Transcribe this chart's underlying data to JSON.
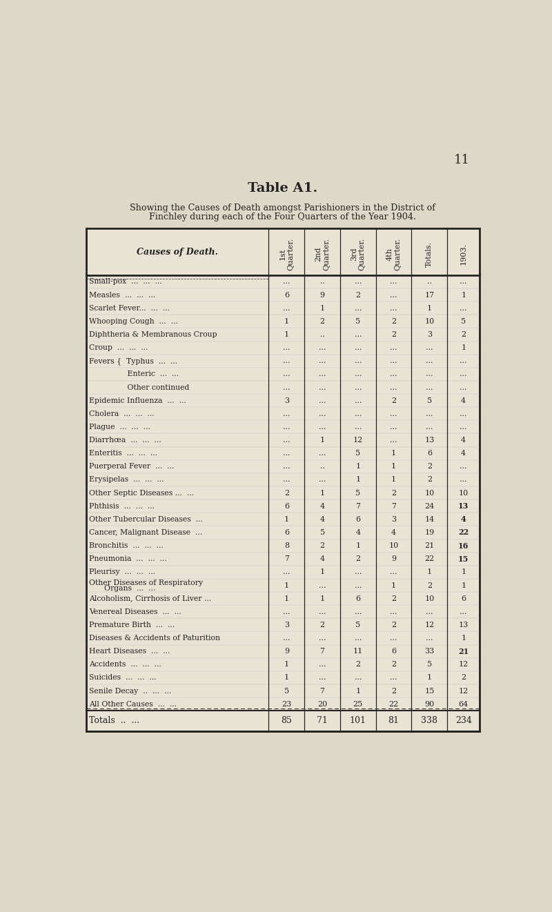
{
  "page_number": "11",
  "title": "Table A1.",
  "subtitle_line1": "Showing the Causes of Death amongst Parishioners in the District of",
  "subtitle_line2": "Finchley during each of the Four Quarters of the Year 1904.",
  "col_headers": [
    "Causes of Death.",
    "1st\nQuarter.",
    "2nd\nQuarter.",
    "3rd\nQuarter.",
    "4th\nQuarter.",
    "Totals.",
    "1903."
  ],
  "rows": [
    [
      "Small-pox  ...  ...  ...",
      "...",
      "..",
      "...",
      "...",
      "..",
      "..."
    ],
    [
      "Measles  ...  ...  ...",
      "6",
      "9",
      "2",
      "...",
      "17",
      "1"
    ],
    [
      "Scarlet Fever...  ...  ...",
      "...",
      "1",
      "...",
      "...",
      "1",
      "..."
    ],
    [
      "Whooping Cough  ...  ...",
      "1",
      "2",
      "5",
      "2",
      "10",
      "5"
    ],
    [
      "Diphtheria & Membranous Croup",
      "1",
      "..",
      "...",
      "2",
      "3",
      "2"
    ],
    [
      "Croup  ...  ...  ...",
      "...",
      "...",
      "...",
      "...",
      "...",
      "1"
    ],
    [
      "Fevers {  Typhus  ...  ...",
      "...",
      "...",
      "...",
      "...",
      "...",
      "..."
    ],
    [
      "           Enteric  ...  ...",
      "...",
      "...",
      "...",
      "...",
      "...",
      "..."
    ],
    [
      "           Other continued",
      "...",
      "...",
      "...",
      "...",
      "...",
      "..."
    ],
    [
      "Epidemic Influenza  ...  ...",
      "3",
      "...",
      "...",
      "2",
      "5",
      "4"
    ],
    [
      "Cholera  ...  ...  ...",
      "...",
      "...",
      "...",
      "...",
      "...",
      "..."
    ],
    [
      "Plague  ...  ...  ...",
      "...",
      "...",
      "...",
      "...",
      "...",
      "..."
    ],
    [
      "Diarrhœa  ...  ...  ...",
      "...",
      "1",
      "12",
      "...",
      "13",
      "4"
    ],
    [
      "Enteritis  ...  ...  ...",
      "...",
      "...",
      "5",
      "1",
      "6",
      "4"
    ],
    [
      "Puerperal Fever  ...  ...",
      "...",
      "..",
      "1",
      "1",
      "2",
      "..."
    ],
    [
      "Erysipelas  ...  ...  ...",
      "...",
      "...",
      "1",
      "1",
      "2",
      "..."
    ],
    [
      "Other Septic Diseases ...  ...",
      "2",
      "1",
      "5",
      "2",
      "10",
      "10"
    ],
    [
      "Phthisis  ...  ...  ...",
      "6",
      "4",
      "7",
      "7",
      "24",
      "13"
    ],
    [
      "Other Tubercular Diseases  ...",
      "1",
      "4",
      "6",
      "3",
      "14",
      "4"
    ],
    [
      "Cancer, Malignant Disease  ...",
      "6",
      "5",
      "4",
      "4",
      "19",
      "22"
    ],
    [
      "Bronchitis  ...  ...  ...",
      "8",
      "2",
      "1",
      "10",
      "21",
      "16"
    ],
    [
      "Pneumonia  ...  ...  ...",
      "7",
      "4",
      "2",
      "9",
      "22",
      "15"
    ],
    [
      "Pleurisy  ...  ...  ...",
      "...",
      "1",
      "...",
      "...",
      "1",
      "1"
    ],
    [
      "Other Diseases of Respiratory",
      "1",
      "...",
      "...",
      "1",
      "2",
      "1"
    ],
    [
      "Alcoholism, Cirrhosis of Liver ...",
      "1",
      "1",
      "6",
      "2",
      "10",
      "6"
    ],
    [
      "Venereal Diseases  ...  ...",
      "...",
      "...",
      "...",
      "...",
      "...",
      "..."
    ],
    [
      "Premature Birth  ...  ...",
      "3",
      "2",
      "5",
      "2",
      "12",
      "13"
    ],
    [
      "Diseases & Accidents of Paturition",
      "...",
      "...",
      "...",
      "...",
      "...",
      "1"
    ],
    [
      "Heart Diseases  ...  ...",
      "9",
      "7",
      "11",
      "6",
      "33",
      "21"
    ],
    [
      "Accidents  ...  ...  ...",
      "1",
      "...",
      "2",
      "2",
      "5",
      "12"
    ],
    [
      "Suicides  ...  ...  ...",
      "1",
      "...",
      "...",
      "...",
      "1",
      "2"
    ],
    [
      "Senile Decay  ..  ...  ...",
      "5",
      "7",
      "1",
      "2",
      "15",
      "12"
    ],
    [
      "All Other Causes  ...  ...",
      "23",
      "20",
      "25",
      "22",
      "90",
      "64"
    ]
  ],
  "row_indent": [
    0,
    0,
    0,
    0,
    0,
    0,
    0,
    1,
    1,
    0,
    0,
    0,
    0,
    0,
    0,
    0,
    0,
    0,
    0,
    0,
    0,
    0,
    0,
    0,
    0,
    0,
    0,
    0,
    0,
    0,
    0,
    0,
    0
  ],
  "row23_subtext": "    Organs  ...  ...",
  "totals_row": [
    "Totals  ..  ...",
    "85",
    "71",
    "101",
    "81",
    "338",
    "234"
  ],
  "bg_color": "#ddd8c8",
  "table_bg": "#e8e3d5",
  "text_color": "#111111",
  "line_color": "#222222",
  "bold_1903": [
    17,
    18,
    19,
    20,
    21,
    28
  ]
}
